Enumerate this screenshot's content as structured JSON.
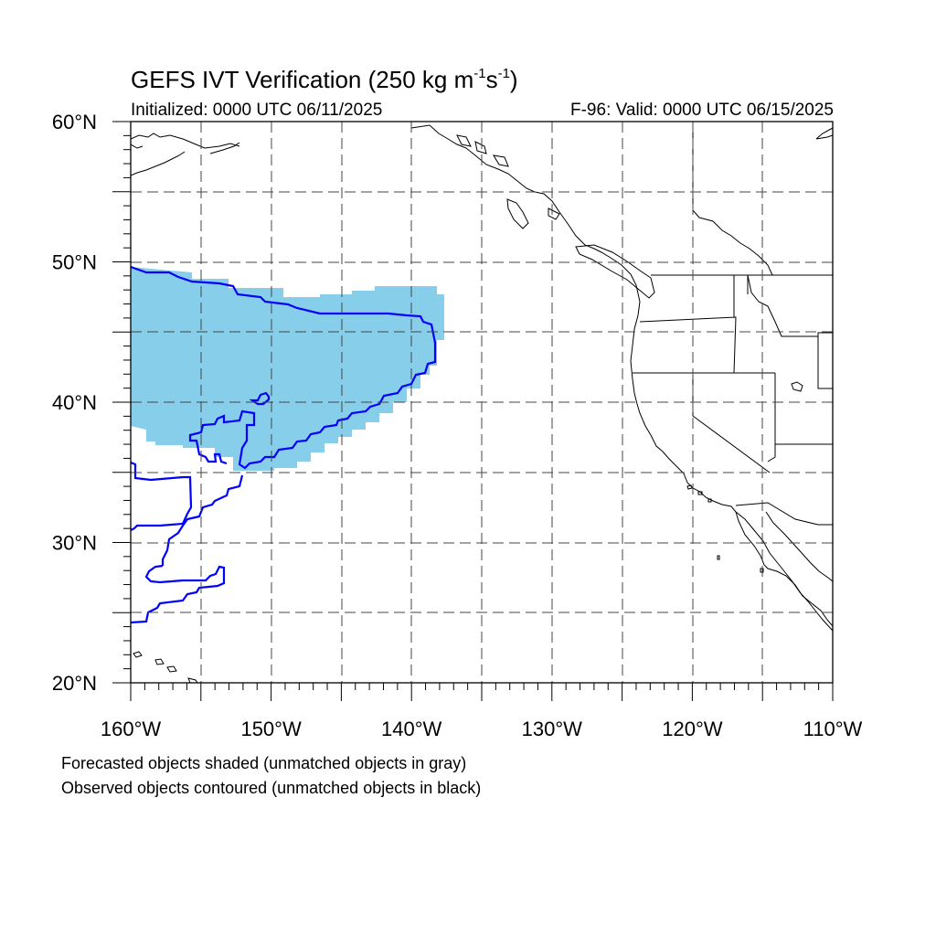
{
  "map": {
    "title_prefix": "GEFS IVT Verification (250 kg m",
    "title_exp1": "-1",
    "title_mid": "s",
    "title_exp2": "-1",
    "title_suffix": ")",
    "initialized": "Initialized: 0000 UTC 06/11/2025",
    "valid": "F-96: Valid: 0000 UTC 06/15/2025",
    "lat_labels": [
      {
        "text": "60°N",
        "lat": 60
      },
      {
        "text": "50°N",
        "lat": 50
      },
      {
        "text": "40°N",
        "lat": 40
      },
      {
        "text": "30°N",
        "lat": 30
      },
      {
        "text": "20°N",
        "lat": 20
      }
    ],
    "lon_labels": [
      {
        "text": "160°W",
        "lon": -160
      },
      {
        "text": "150°W",
        "lon": -150
      },
      {
        "text": "140°W",
        "lon": -140
      },
      {
        "text": "130°W",
        "lon": -130
      },
      {
        "text": "120°W",
        "lon": -120
      },
      {
        "text": "110°W",
        "lon": -110
      }
    ],
    "lon_range": [
      -160,
      -110
    ],
    "lat_range": [
      20,
      60
    ],
    "grid_lines": "dashed every 5 degrees",
    "notes": {
      "forecast": "Forecasted objects shaded (unmatched objects in gray)",
      "observed": "Observed objects contoured (unmatched objects in black)"
    },
    "colors": {
      "forecast_fill": "#87ceeb",
      "observed_contour": "#0000ff",
      "coastline": "#000000",
      "grid": "#555555"
    }
  }
}
